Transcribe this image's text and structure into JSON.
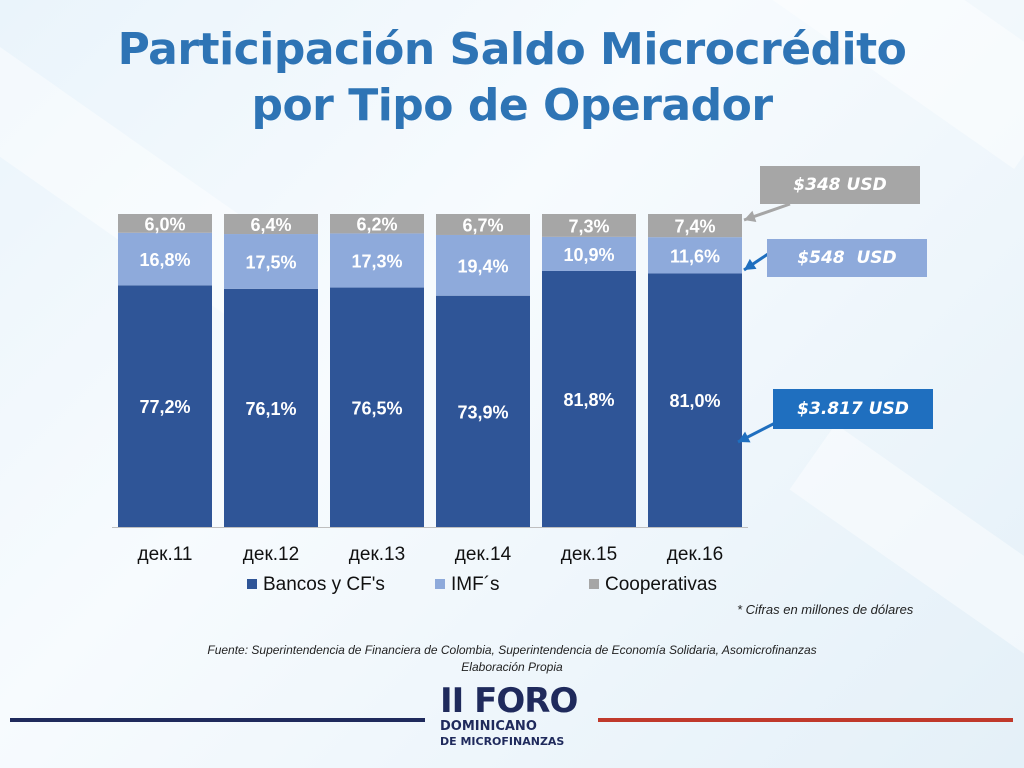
{
  "title_line1": "Participación Saldo Microcrédito",
  "title_line2": "por Tipo de Operador",
  "chart_data": {
    "type": "bar",
    "stacked": true,
    "normalized_percent": true,
    "categories": [
      "дек.11",
      "дек.12",
      "дек.13",
      "дек.14",
      "дек.15",
      "дек.16"
    ],
    "series": [
      {
        "name": "Bancos y CF's",
        "color": "#2f5597",
        "values": [
          77.2,
          76.1,
          76.5,
          73.9,
          81.8,
          81.0
        ],
        "labels": [
          "77,2%",
          "76,1%",
          "76,5%",
          "73,9%",
          "81,8%",
          "81,0%"
        ]
      },
      {
        "name": "IMF´s",
        "color": "#8eaadb",
        "values": [
          16.8,
          17.5,
          17.3,
          19.4,
          10.9,
          11.6
        ],
        "labels": [
          "16,8%",
          "17,5%",
          "17,3%",
          "19,4%",
          "10,9%",
          "11,6%"
        ]
      },
      {
        "name": "Cooperativas",
        "color": "#a6a6a6",
        "values": [
          6.0,
          6.4,
          6.2,
          6.7,
          7.3,
          7.4
        ],
        "labels": [
          "6,0%",
          "6,4%",
          "6,2%",
          "6,7%",
          "7,3%",
          "7,4%"
        ]
      }
    ],
    "ylim": [
      0,
      100
    ],
    "grid": false,
    "legend_position": "bottom"
  },
  "callouts": [
    {
      "text": "$348 USD",
      "color": "#a6a6a6"
    },
    {
      "text": "$548  USD",
      "color": "#8eaadb"
    },
    {
      "text": "$3.817 USD",
      "color": "#1f6fbf"
    }
  ],
  "note": "* Cifras en millones de dólares",
  "source_line1": "Fuente: Superintendencia de Financiera de Colombia, Superintendencia de Economía Solidaria, Asomicrofinanzas",
  "source_line2": "Elaboración Propia",
  "logo": {
    "line1": "II FORO",
    "line2": "DOMINICANO",
    "line3": "DE MICROFINANZAS"
  },
  "colors": {
    "title": "#2e74b5",
    "line_left": "#1f2a5c",
    "line_right": "#c0392b"
  }
}
